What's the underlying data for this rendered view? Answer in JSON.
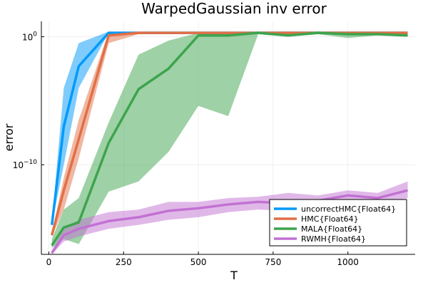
{
  "chart_data": {
    "type": "line",
    "title": "WarpedGaussian inv error",
    "xlabel": "T",
    "ylabel": "error",
    "y_scale": "log10",
    "xlim": [
      -25,
      1225
    ],
    "ylim_log10": [
      -17,
      1.2
    ],
    "x_ticks": [
      {
        "value": 0,
        "label": "0"
      },
      {
        "value": 250,
        "label": "250"
      },
      {
        "value": 500,
        "label": "500"
      },
      {
        "value": 750,
        "label": "750"
      },
      {
        "value": 1000,
        "label": "1000"
      }
    ],
    "y_ticks": [
      {
        "value": 0,
        "base": "10",
        "exp": "0"
      },
      {
        "value": -10,
        "base": "10",
        "exp": "−10"
      }
    ],
    "grid": true,
    "legend_position": "bottom-right",
    "x": [
      10,
      50,
      100,
      200,
      300,
      400,
      500,
      600,
      700,
      800,
      900,
      1000,
      1100,
      1200
    ],
    "series": [
      {
        "name": "uncorrectHMC{Float64}",
        "color": "#009AFA",
        "values_log10": [
          -14.7,
          -7.0,
          -2.3,
          0.3,
          0.3,
          0.3,
          0.3,
          0.3,
          0.3,
          0.3,
          0.3,
          0.3,
          0.3,
          0.3
        ],
        "band_lower_log10": [
          -14.7,
          -10.0,
          -4.0,
          0.3,
          0.3,
          0.3,
          0.3,
          0.3,
          0.3,
          0.3,
          0.3,
          0.3,
          0.3,
          0.3
        ],
        "band_upper_log10": [
          -14.5,
          -4.0,
          -0.5,
          0.4,
          0.4,
          0.4,
          0.4,
          0.4,
          0.4,
          0.4,
          0.4,
          0.4,
          0.4,
          0.4
        ]
      },
      {
        "name": "HMC{Float64}",
        "color": "#E26F46",
        "values_log10": [
          -15.5,
          -12.0,
          -8.0,
          0.1,
          0.3,
          0.3,
          0.3,
          0.3,
          0.3,
          0.3,
          0.3,
          0.3,
          0.3,
          0.3
        ],
        "band_lower_log10": [
          -15.6,
          -13.5,
          -9.5,
          -0.5,
          0.2,
          0.2,
          0.2,
          0.2,
          0.2,
          0.2,
          0.2,
          0.2,
          0.2,
          0.2
        ],
        "band_upper_log10": [
          -15.3,
          -11.0,
          -6.5,
          0.4,
          0.4,
          0.4,
          0.4,
          0.4,
          0.4,
          0.4,
          0.4,
          0.4,
          0.4,
          0.4
        ]
      },
      {
        "name": "MALA{Float64}",
        "color": "#3DA44D",
        "values_log10": [
          -16.3,
          -14.9,
          -14.5,
          -8.3,
          -4.1,
          -2.5,
          0.1,
          0.1,
          0.3,
          0.1,
          0.3,
          0.2,
          0.2,
          0.1
        ],
        "band_lower_log10": [
          -16.5,
          -15.8,
          -16.2,
          -12.1,
          -11.3,
          -9.0,
          -5.4,
          -6.2,
          0.2,
          0.0,
          0.2,
          -0.1,
          0.1,
          0.0
        ],
        "band_upper_log10": [
          -15.8,
          -13.5,
          -12.6,
          -6.7,
          -1.4,
          -0.3,
          0.3,
          0.3,
          0.4,
          0.4,
          0.4,
          0.4,
          0.4,
          0.4
        ]
      },
      {
        "name": "RWMH{Float64}",
        "color": "#C271D2",
        "values_log10": [
          -16.9,
          -15.5,
          -15.0,
          -14.4,
          -14.1,
          -13.6,
          -13.4,
          -13.1,
          -12.9,
          -13.0,
          -12.8,
          -12.4,
          -12.6,
          -12.0
        ],
        "band_lower_log10": [
          -17.0,
          -16.0,
          -15.6,
          -15.0,
          -14.7,
          -14.3,
          -14.1,
          -13.7,
          -13.5,
          -13.6,
          -13.5,
          -13.0,
          -13.3,
          -12.6
        ],
        "band_upper_log10": [
          -16.7,
          -15.0,
          -14.3,
          -13.7,
          -13.5,
          -12.9,
          -12.9,
          -12.6,
          -12.5,
          -12.2,
          -12.4,
          -12.0,
          -12.2,
          -11.3
        ]
      }
    ]
  }
}
